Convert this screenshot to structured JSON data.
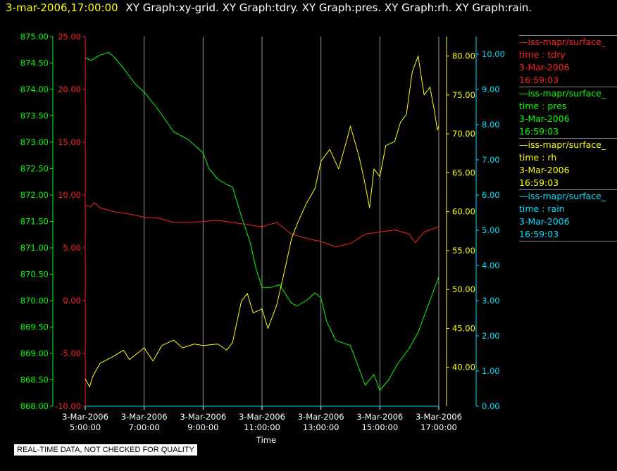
{
  "header": {
    "timestamp": "3-mar-2006,17:00:00",
    "titles": "XY Graph:xy-grid.  XY Graph:tdry.  XY Graph:pres.  XY Graph:rh.  XY Graph:rain."
  },
  "disclaimer": "REAL-TIME DATA, NOT CHECKED FOR QUALITY",
  "legend": [
    {
      "name": "iss-mapr/surface_",
      "var": "time : tdry",
      "date": "3-Mar-2006",
      "time": "16:59:03",
      "color": "#ff2020"
    },
    {
      "name": "iss-mapr/surface_",
      "var": "time : pres",
      "date": "3-Mar-2006",
      "time": "16:59:03",
      "color": "#00ff00"
    },
    {
      "name": "iss-mapr/surface_",
      "var": "time : rh",
      "date": "3-Mar-2006",
      "time": "16:59:03",
      "color": "#ffff00"
    },
    {
      "name": "iss-mapr/surface_",
      "var": "time : rain",
      "date": "3-Mar-2006",
      "time": "16:59:03",
      "color": "#00e0ff"
    }
  ],
  "chart_data": {
    "type": "line",
    "xlabel": "Time",
    "x_ticks": [
      {
        "date": "3-Mar-2006",
        "time": "5:00:00"
      },
      {
        "date": "3-Mar-2006",
        "time": "7:00:00"
      },
      {
        "date": "3-Mar-2006",
        "time": "9:00:00"
      },
      {
        "date": "3-Mar-2006",
        "time": "11:00:00"
      },
      {
        "date": "3-Mar-2006",
        "time": "13:00:00"
      },
      {
        "date": "3-Mar-2006",
        "time": "15:00:00"
      },
      {
        "date": "3-Mar-2006",
        "time": "17:00:00"
      }
    ],
    "x_hours": [
      5,
      7,
      9,
      11,
      13,
      15,
      17
    ],
    "xlim_hours": [
      5,
      17
    ],
    "grid": "vertical",
    "axes": [
      {
        "id": "pres",
        "side": "left",
        "color": "#00ff00",
        "ylim": [
          868.0,
          875.0
        ],
        "ticks": [
          "868.00",
          "868.50",
          "869.00",
          "869.50",
          "870.00",
          "870.50",
          "871.00",
          "871.50",
          "872.00",
          "872.50",
          "873.00",
          "873.50",
          "874.00",
          "874.50",
          "875.00"
        ]
      },
      {
        "id": "tdry",
        "side": "left",
        "color": "#ff2020",
        "ylim": [
          -10.0,
          25.0
        ],
        "ticks": [
          "-10.00",
          "-5.00",
          "0.00",
          "5.00",
          "10.00",
          "15.00",
          "20.00",
          "25.00"
        ]
      },
      {
        "id": "rh",
        "side": "right",
        "color": "#ffff00",
        "ylim": [
          35.0,
          82.5
        ],
        "ticks": [
          "40.00",
          "45.00",
          "50.00",
          "55.00",
          "60.00",
          "65.00",
          "70.00",
          "75.00",
          "80.00"
        ]
      },
      {
        "id": "rain",
        "side": "right",
        "color": "#00e0ff",
        "ylim": [
          0.0,
          10.5
        ],
        "ticks": [
          "0.00",
          "1.00",
          "2.00",
          "3.00",
          "4.00",
          "5.00",
          "6.00",
          "7.00",
          "8.00",
          "9.00",
          "10.00"
        ]
      }
    ],
    "series": [
      {
        "axis": "tdry",
        "color": "#ff2020",
        "points": [
          [
            5.0,
            9.0
          ],
          [
            5.2,
            8.9
          ],
          [
            5.3,
            9.3
          ],
          [
            5.5,
            8.8
          ],
          [
            6.0,
            8.4
          ],
          [
            6.5,
            8.2
          ],
          [
            7.0,
            7.9
          ],
          [
            7.5,
            7.8
          ],
          [
            8.0,
            7.4
          ],
          [
            8.5,
            7.4
          ],
          [
            9.0,
            7.5
          ],
          [
            9.5,
            7.6
          ],
          [
            10.0,
            7.4
          ],
          [
            10.5,
            7.2
          ],
          [
            11.0,
            7.0
          ],
          [
            11.5,
            7.4
          ],
          [
            12.0,
            6.3
          ],
          [
            12.5,
            5.9
          ],
          [
            13.0,
            5.6
          ],
          [
            13.5,
            5.1
          ],
          [
            14.0,
            5.4
          ],
          [
            14.5,
            6.3
          ],
          [
            15.0,
            6.5
          ],
          [
            15.5,
            6.7
          ],
          [
            16.0,
            6.3
          ],
          [
            16.2,
            5.5
          ],
          [
            16.5,
            6.5
          ],
          [
            17.0,
            7.0
          ]
        ]
      },
      {
        "axis": "pres",
        "color": "#00ff00",
        "points": [
          [
            5.0,
            874.6
          ],
          [
            5.2,
            874.55
          ],
          [
            5.5,
            874.65
          ],
          [
            5.8,
            874.7
          ],
          [
            6.0,
            874.6
          ],
          [
            6.3,
            874.4
          ],
          [
            6.7,
            874.1
          ],
          [
            7.0,
            873.95
          ],
          [
            7.5,
            873.6
          ],
          [
            8.0,
            873.2
          ],
          [
            8.5,
            873.05
          ],
          [
            9.0,
            872.8
          ],
          [
            9.2,
            872.5
          ],
          [
            9.5,
            872.3
          ],
          [
            9.8,
            872.2
          ],
          [
            10.0,
            872.15
          ],
          [
            10.3,
            871.6
          ],
          [
            10.6,
            871.1
          ],
          [
            10.8,
            870.6
          ],
          [
            11.0,
            870.25
          ],
          [
            11.3,
            870.25
          ],
          [
            11.6,
            870.3
          ],
          [
            12.0,
            869.95
          ],
          [
            12.2,
            869.9
          ],
          [
            12.5,
            870.0
          ],
          [
            12.8,
            870.15
          ],
          [
            13.0,
            870.05
          ],
          [
            13.2,
            869.6
          ],
          [
            13.5,
            869.25
          ],
          [
            14.0,
            869.15
          ],
          [
            14.3,
            868.7
          ],
          [
            14.5,
            868.4
          ],
          [
            14.8,
            868.6
          ],
          [
            15.0,
            868.3
          ],
          [
            15.3,
            868.5
          ],
          [
            15.6,
            868.8
          ],
          [
            16.0,
            869.1
          ],
          [
            16.3,
            869.4
          ],
          [
            16.6,
            869.85
          ],
          [
            16.9,
            870.3
          ],
          [
            17.0,
            870.45
          ]
        ]
      },
      {
        "axis": "rh",
        "color": "#ffff00",
        "points": [
          [
            5.0,
            38.5
          ],
          [
            5.15,
            37.5
          ],
          [
            5.25,
            38.8
          ],
          [
            5.5,
            40.5
          ],
          [
            6.0,
            41.5
          ],
          [
            6.3,
            42.2
          ],
          [
            6.5,
            41.0
          ],
          [
            7.0,
            42.5
          ],
          [
            7.3,
            40.8
          ],
          [
            7.6,
            42.8
          ],
          [
            8.0,
            43.5
          ],
          [
            8.3,
            42.5
          ],
          [
            8.7,
            43.0
          ],
          [
            9.0,
            42.8
          ],
          [
            9.5,
            43.0
          ],
          [
            9.8,
            42.2
          ],
          [
            10.0,
            43.2
          ],
          [
            10.3,
            48.5
          ],
          [
            10.5,
            49.5
          ],
          [
            10.7,
            47.0
          ],
          [
            11.0,
            47.5
          ],
          [
            11.2,
            45.0
          ],
          [
            11.5,
            48.0
          ],
          [
            11.8,
            53.0
          ],
          [
            12.0,
            56.5
          ],
          [
            12.2,
            58.5
          ],
          [
            12.5,
            61.0
          ],
          [
            12.8,
            63.0
          ],
          [
            13.0,
            66.5
          ],
          [
            13.3,
            68.0
          ],
          [
            13.6,
            65.5
          ],
          [
            13.9,
            69.5
          ],
          [
            14.0,
            71.0
          ],
          [
            14.3,
            67.0
          ],
          [
            14.5,
            63.5
          ],
          [
            14.65,
            60.5
          ],
          [
            14.8,
            65.5
          ],
          [
            15.0,
            64.5
          ],
          [
            15.2,
            68.5
          ],
          [
            15.5,
            69.0
          ],
          [
            15.7,
            71.5
          ],
          [
            15.9,
            72.5
          ],
          [
            16.1,
            78.0
          ],
          [
            16.3,
            80.0
          ],
          [
            16.5,
            75.0
          ],
          [
            16.7,
            76.0
          ],
          [
            16.85,
            73.0
          ],
          [
            16.95,
            70.5
          ],
          [
            17.0,
            71.0
          ]
        ]
      },
      {
        "axis": "rain",
        "color": "#00e0ff",
        "points": [
          [
            5.0,
            0.0
          ],
          [
            17.0,
            0.0
          ]
        ]
      }
    ]
  }
}
